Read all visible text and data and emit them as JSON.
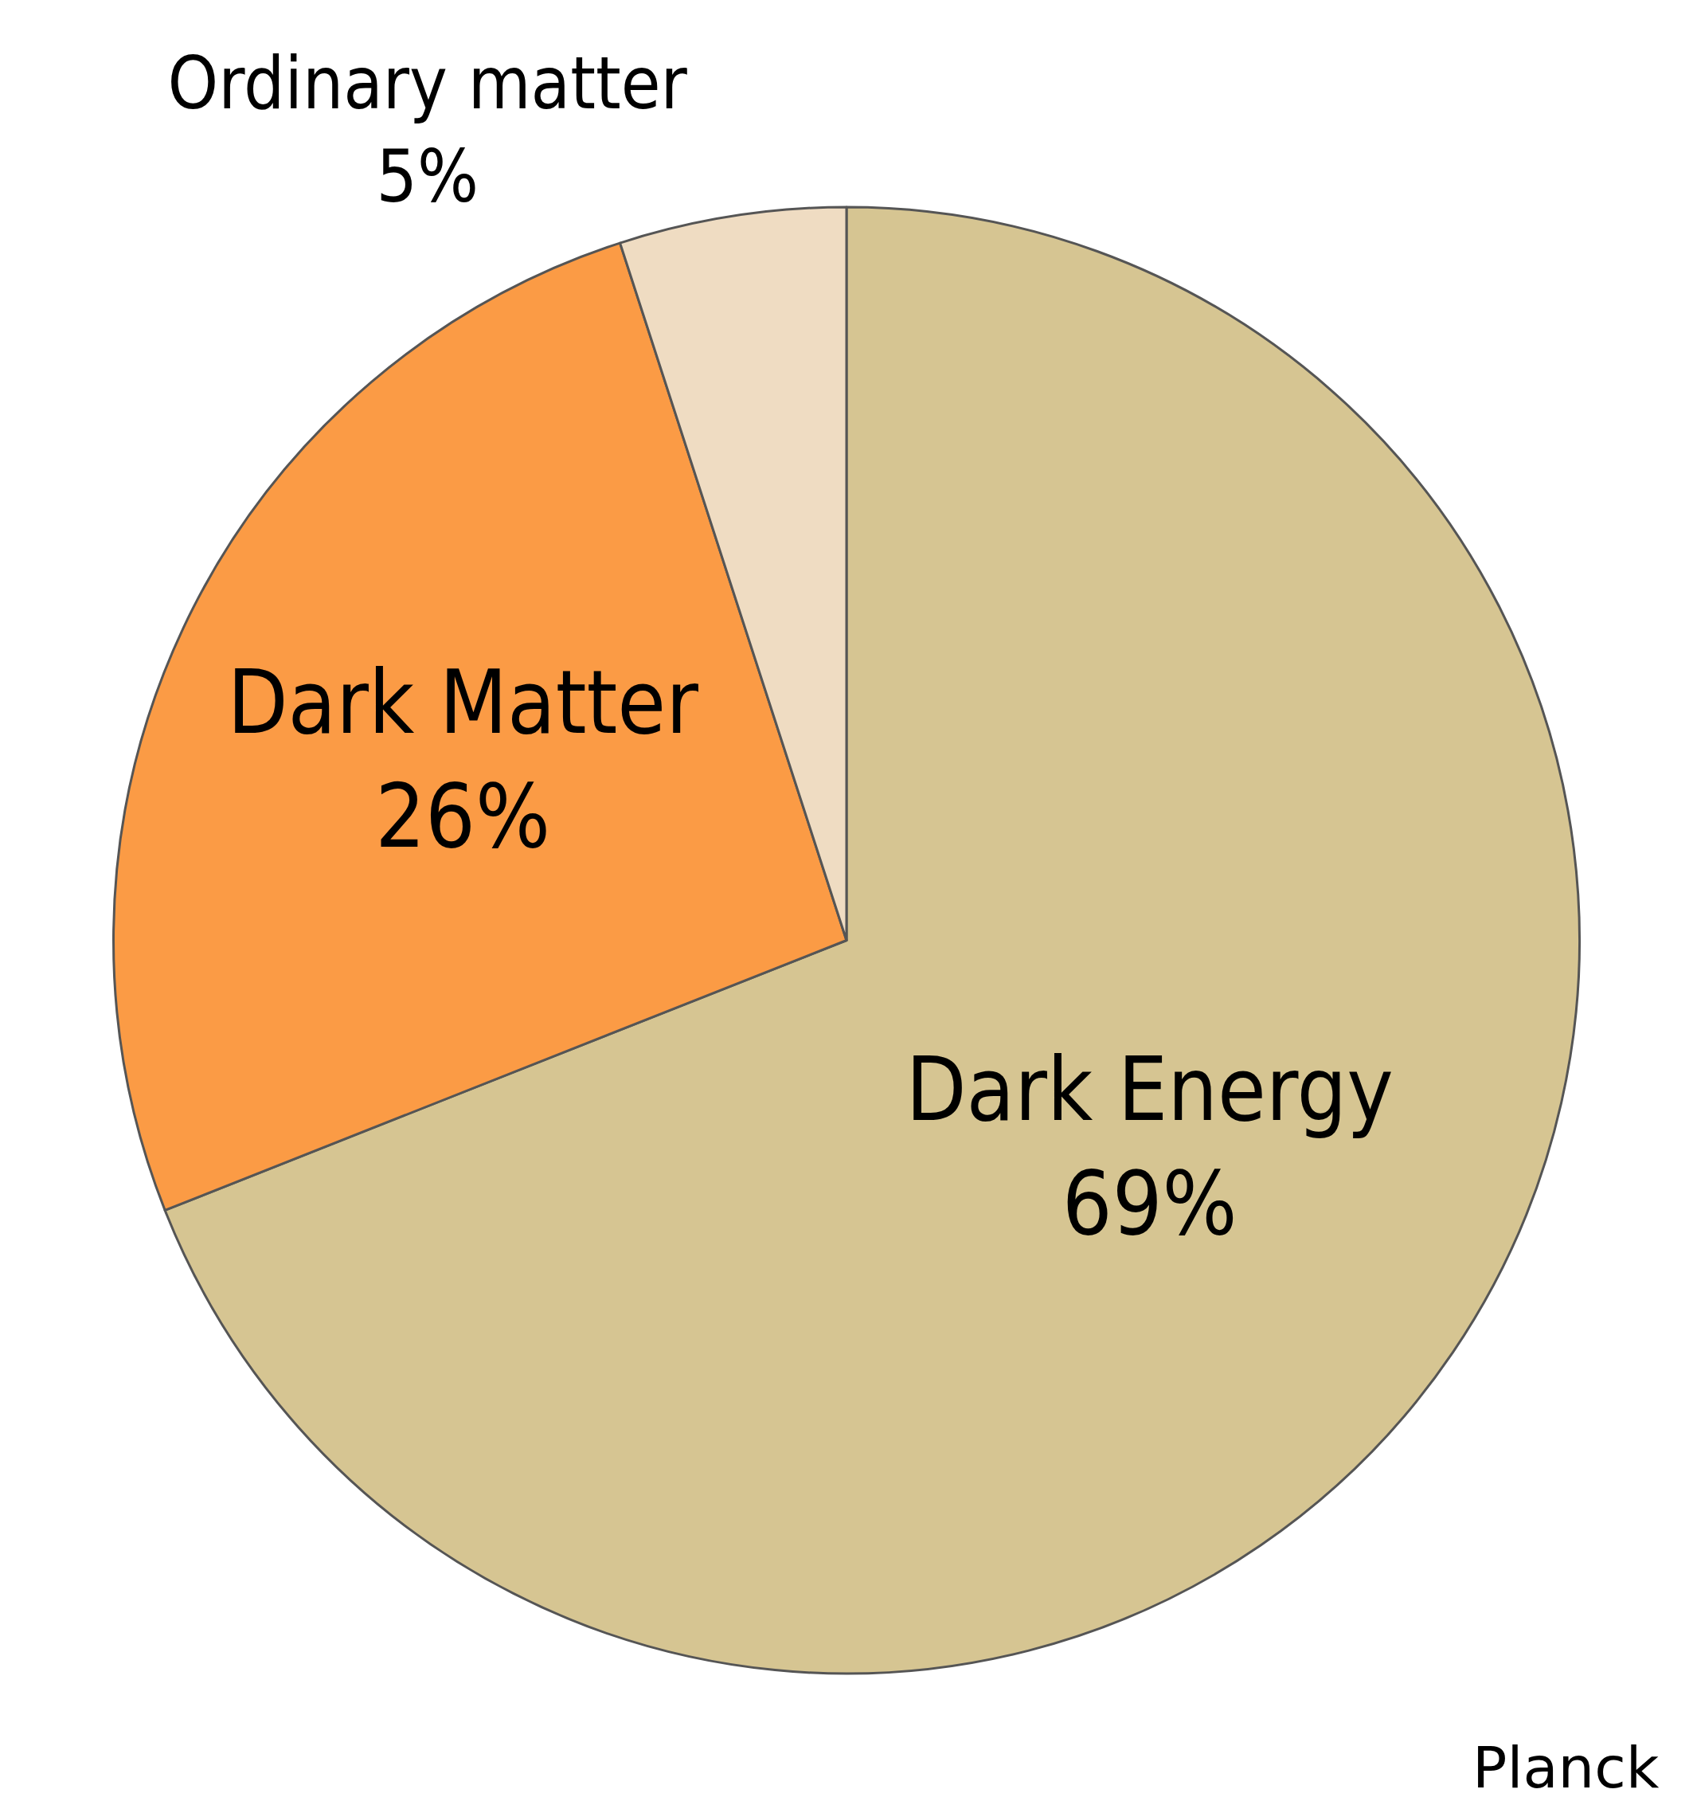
{
  "chart_data": {
    "type": "pie",
    "categories": [
      "Dark Energy",
      "Dark Matter",
      "Ordinary matter"
    ],
    "values": [
      69,
      26,
      5
    ],
    "value_labels": [
      "69%",
      "26%",
      "5%"
    ],
    "colors": [
      "#d6c592",
      "#fb9b45",
      "#efdcc2"
    ],
    "legend": false,
    "annotations": [
      "Planck"
    ]
  }
}
